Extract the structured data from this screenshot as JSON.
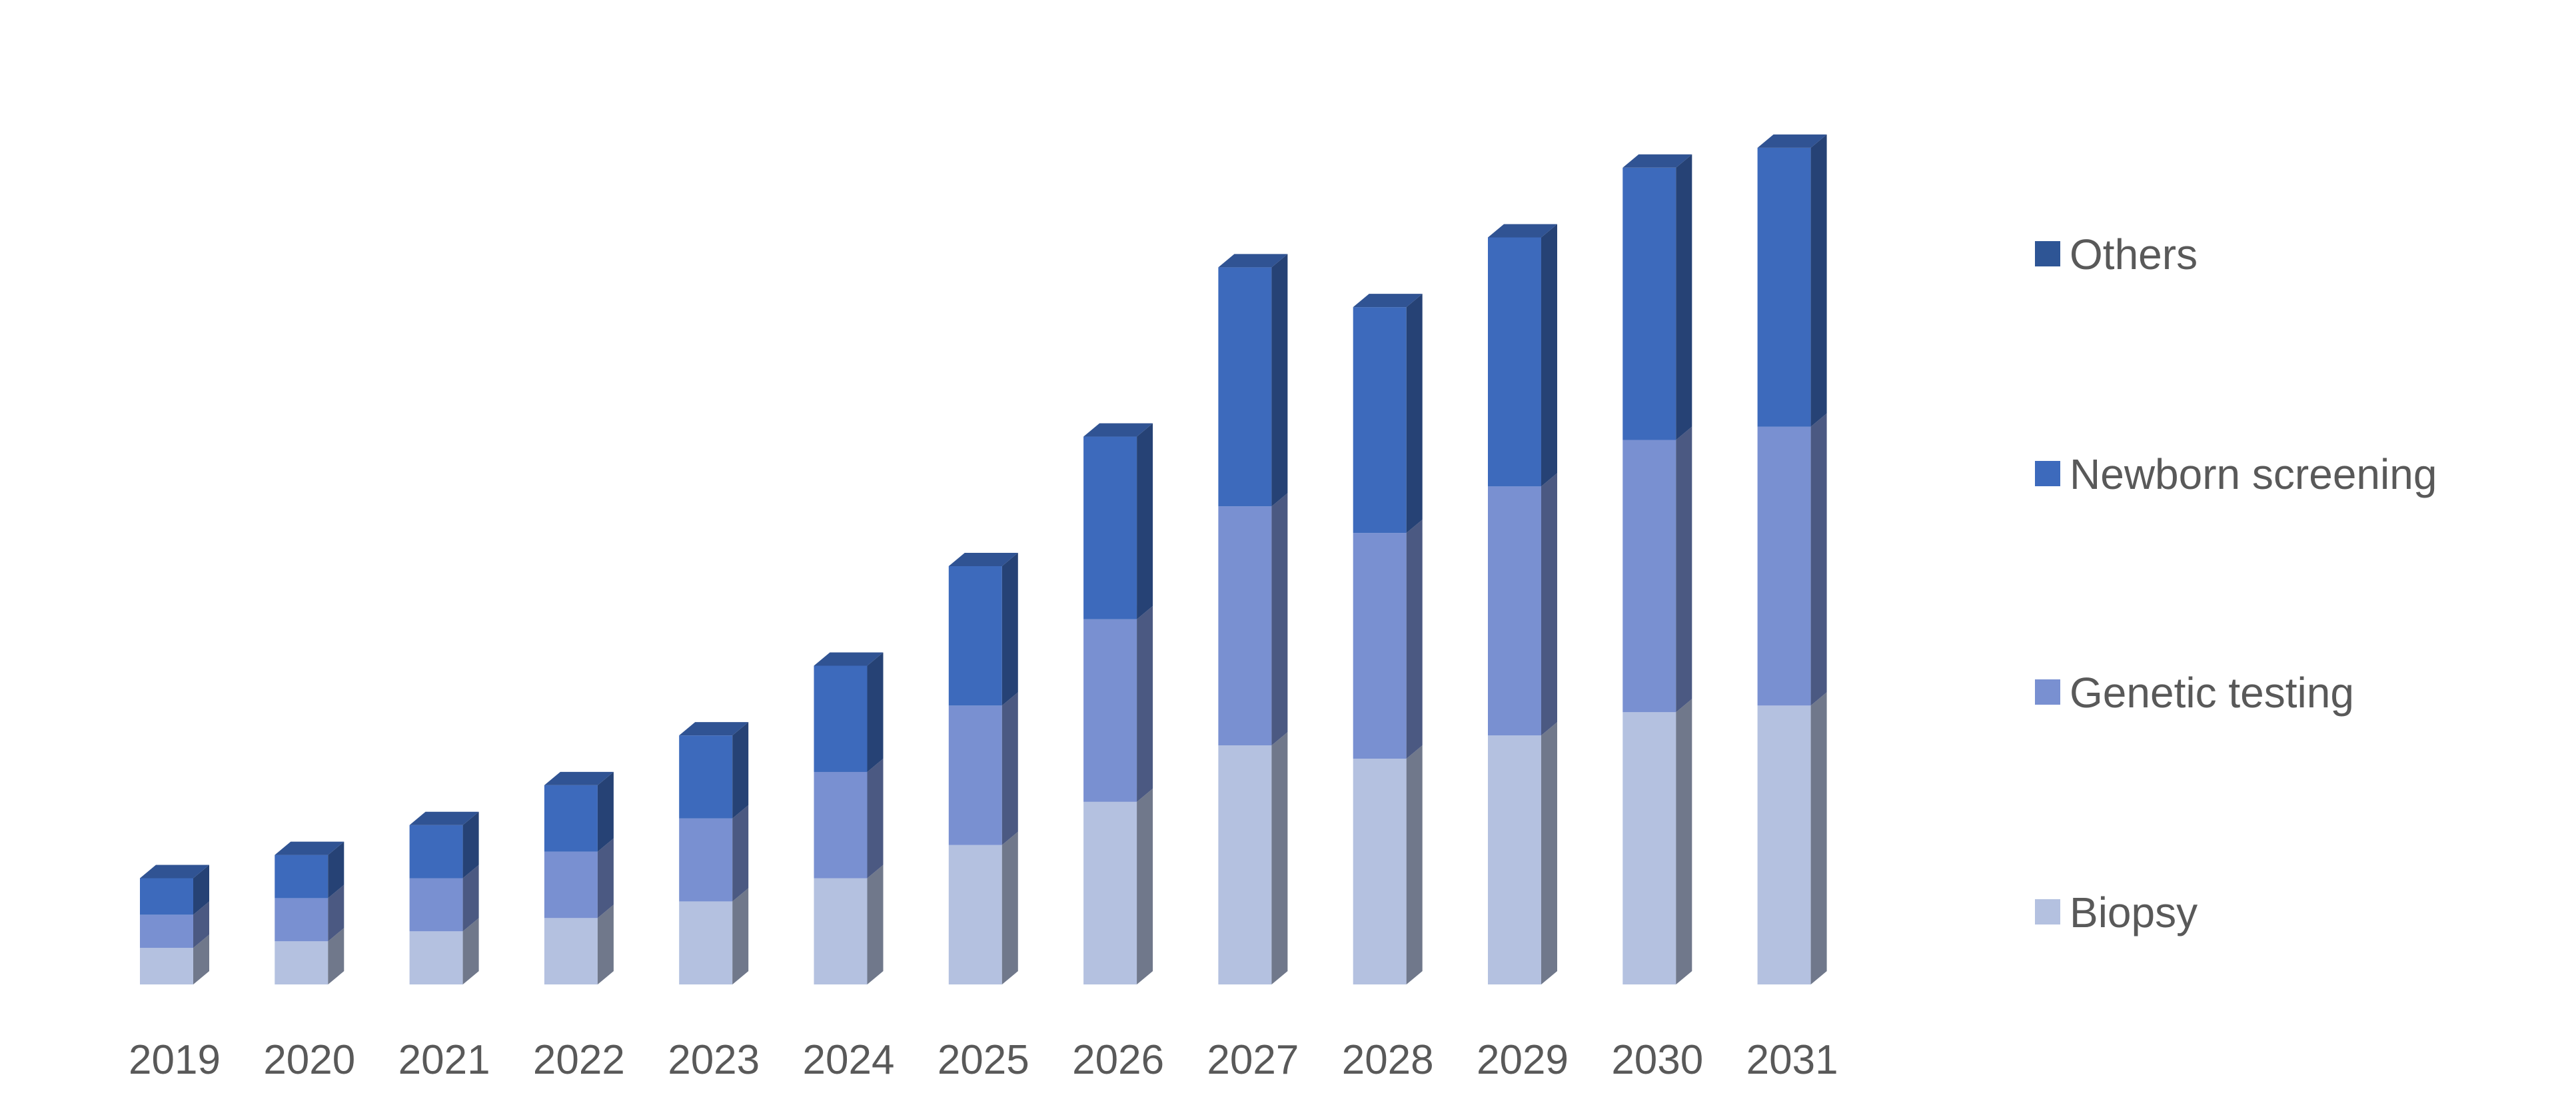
{
  "chart_data": {
    "type": "bar",
    "stacked": true,
    "style": "3d-column",
    "categories": [
      "2019",
      "2020",
      "2021",
      "2022",
      "2023",
      "2024",
      "2025",
      "2026",
      "2027",
      "2028",
      "2029",
      "2030",
      "2031"
    ],
    "series": [
      {
        "name": "Biopsy",
        "color": "#b4c1e0",
        "values": [
          5.5,
          6.5,
          8,
          10,
          12.5,
          16,
          21,
          27.5,
          36,
          34,
          37.5,
          41,
          42
        ]
      },
      {
        "name": "Genetic testing",
        "color": "#7990d1",
        "values": [
          5,
          6.5,
          8,
          10,
          12.5,
          16,
          21,
          27.5,
          36,
          34,
          37.5,
          41,
          42
        ]
      },
      {
        "name": "Newborn screening",
        "color": "#3d6abc",
        "values": [
          5.5,
          6.5,
          8,
          10,
          12.5,
          16,
          21,
          27.5,
          36,
          34,
          37.5,
          41,
          42
        ]
      },
      {
        "name": "Others",
        "color": "#2e5595",
        "values": [
          0,
          0,
          0,
          0,
          0,
          0,
          0,
          0,
          0,
          0,
          0,
          0,
          0
        ]
      }
    ],
    "title": "",
    "xlabel": "",
    "ylabel": "",
    "ylim": [
      0,
      130
    ],
    "grid": false,
    "legend_position": "right",
    "legend_order": [
      "Others",
      "Newborn screening",
      "Genetic testing",
      "Biopsy"
    ]
  }
}
